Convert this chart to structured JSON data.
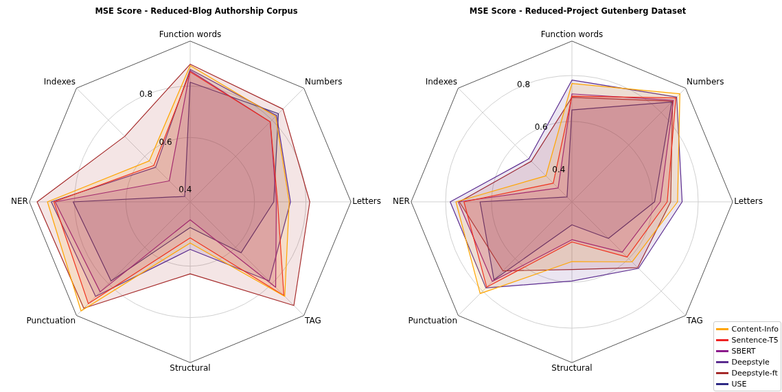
{
  "chart_data": [
    {
      "type": "radar",
      "title": "MSE Score - Reduced-Blog Authorship Corpus",
      "categories": [
        "Function words",
        "Numbers",
        "Letters",
        "TAG",
        "Structural",
        "Punctuation",
        "NER",
        "Indexes"
      ],
      "ylim": [
        0.35,
        0.975
      ],
      "yticks": [
        0.4,
        0.6,
        0.8
      ],
      "grid": true,
      "legend": false,
      "series": [
        {
          "color": "#ffa500",
          "values": [
            0.88,
            0.82,
            0.735,
            0.87,
            0.51,
            0.95,
            0.905,
            0.575
          ]
        },
        {
          "color": "#ee2222",
          "values": [
            0.855,
            0.79,
            0.69,
            0.865,
            0.49,
            0.91,
            0.88,
            0.55
          ]
        },
        {
          "color": "#8b1a8b",
          "values": [
            0.86,
            0.79,
            0.685,
            0.82,
            0.42,
            0.845,
            0.875,
            0.465
          ]
        },
        {
          "color": "#5b2c8f",
          "values": [
            0.865,
            0.825,
            0.74,
            0.785,
            0.535,
            0.87,
            0.89,
            0.54
          ]
        },
        {
          "color": "#a52a2a",
          "values": [
            0.885,
            0.86,
            0.815,
            0.92,
            0.63,
            0.935,
            0.945,
            0.71
          ]
        },
        {
          "color": "#2e2a84",
          "values": [
            0.815,
            0.835,
            0.675,
            0.63,
            0.45,
            0.785,
            0.805,
            0.38
          ]
        }
      ]
    },
    {
      "type": "radar",
      "title": "MSE Score - Reduced-Project Gutenberg Dataset",
      "categories": [
        "Function words",
        "Numbers",
        "Letters",
        "TAG",
        "Structural",
        "Punctuation",
        "NER",
        "Indexes"
      ],
      "ylim": [
        0.25,
        0.95
      ],
      "yticks": [
        0.4,
        0.6,
        0.8
      ],
      "grid": true,
      "legend": "bottom right",
      "series": [
        {
          "name": "Content-Info",
          "color": "#ffa500",
          "values": [
            0.765,
            0.915,
            0.71,
            0.62,
            0.51,
            0.815,
            0.755,
            0.41
          ]
        },
        {
          "name": "Sentence-T5",
          "color": "#ee2222",
          "values": [
            0.71,
            0.89,
            0.665,
            0.59,
            0.425,
            0.775,
            0.72,
            0.365
          ]
        },
        {
          "name": "SBERT",
          "color": "#8b1a8b",
          "values": [
            0.72,
            0.875,
            0.635,
            0.56,
            0.415,
            0.74,
            0.745,
            0.335
          ]
        },
        {
          "name": "Deepstyle",
          "color": "#5b2c8f",
          "values": [
            0.78,
            0.895,
            0.73,
            0.66,
            0.595,
            0.78,
            0.78,
            0.515
          ]
        },
        {
          "name": "Deepstyle-ft",
          "color": "#a52a2a",
          "values": [
            0.705,
            0.87,
            0.68,
            0.655,
            0.545,
            0.675,
            0.74,
            0.5
          ]
        },
        {
          "name": "USE",
          "color": "#2e2a84",
          "values": [
            0.65,
            0.865,
            0.61,
            0.475,
            0.35,
            0.73,
            0.65,
            0.28
          ]
        }
      ]
    }
  ]
}
